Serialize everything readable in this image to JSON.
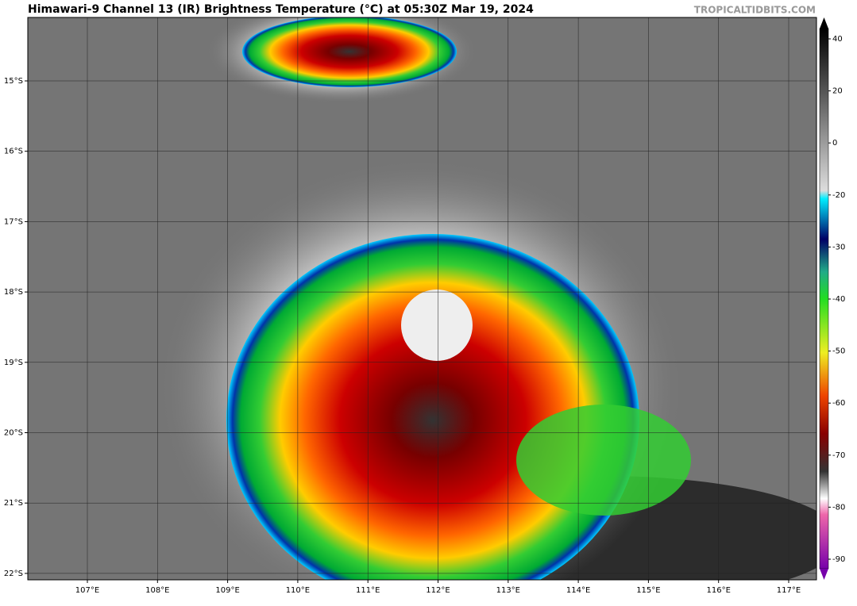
{
  "header": {
    "title": "Himawari-9 Channel 13 (IR) Brightness Temperature (°C) at 05:30Z Mar 19, 2024",
    "credit": "TROPICALTIDBITS.COM"
  },
  "map": {
    "lat_labels": [
      "15°S",
      "16°S",
      "17°S",
      "18°S",
      "19°S",
      "20°S",
      "21°S",
      "22°S"
    ],
    "lon_labels": [
      "107°E",
      "108°E",
      "109°E",
      "110°E",
      "111°E",
      "112°E",
      "113°E",
      "114°E",
      "115°E",
      "116°E",
      "117°E"
    ]
  },
  "colorbar": {
    "ticks": [
      40,
      20,
      0,
      -20,
      -30,
      -40,
      -50,
      -60,
      -70,
      -80,
      -90
    ]
  }
}
